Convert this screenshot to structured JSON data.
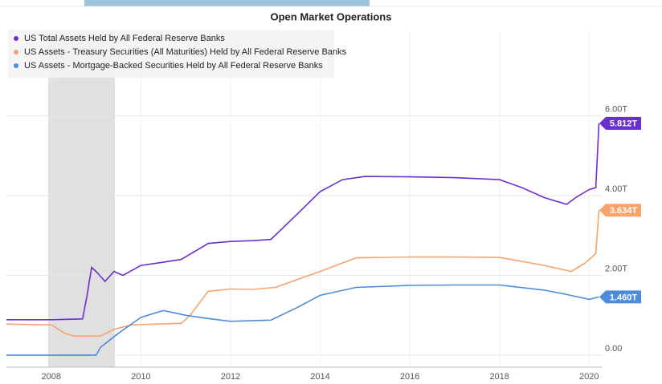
{
  "chart_data": {
    "type": "line",
    "title": "Open Market Operations",
    "xlim": [
      2007,
      2020.3
    ],
    "xticks": [
      2008,
      2010,
      2012,
      2014,
      2016,
      2018,
      2020
    ],
    "ylim": [
      -0.3,
      8.3
    ],
    "yticks": [
      {
        "value": 0,
        "label": "0.00"
      },
      {
        "value": 2,
        "label": "2.00T"
      },
      {
        "value": 4,
        "label": "4.00T"
      },
      {
        "value": 6,
        "label": "6.00T"
      }
    ],
    "grid": true,
    "legend": "top-left",
    "shaded_regions": [
      [
        2007.93,
        2009.42
      ]
    ],
    "series": [
      {
        "name": "US Total Assets Held by All Federal Reserve Banks",
        "color": "#6a2fd0",
        "x": [
          2007,
          2008,
          2008.7,
          2008.8,
          2008.9,
          2009,
          2009.2,
          2009.4,
          2009.6,
          2010,
          2010.5,
          2010.9,
          2011.5,
          2012,
          2012.5,
          2012.9,
          2013.5,
          2014,
          2014.5,
          2015,
          2016,
          2017,
          2018,
          2018.5,
          2019,
          2019.5,
          2019.7,
          2020,
          2020.15,
          2020.22
        ],
        "values": [
          0.89,
          0.89,
          0.91,
          1.5,
          2.2,
          2.1,
          1.85,
          2.1,
          2.0,
          2.25,
          2.33,
          2.4,
          2.8,
          2.85,
          2.87,
          2.9,
          3.55,
          4.1,
          4.4,
          4.48,
          4.47,
          4.45,
          4.4,
          4.2,
          3.95,
          3.78,
          3.95,
          4.15,
          4.2,
          5.812
        ],
        "end_label": "5.812T"
      },
      {
        "name": "US Assets - Treasury Securities (All Maturities) Held by All Federal Reserve Banks",
        "color": "#f8a36b",
        "x": [
          2007,
          2008,
          2008.3,
          2008.5,
          2009.1,
          2009.4,
          2009.8,
          2010.9,
          2011.1,
          2011.5,
          2012,
          2012.5,
          2013,
          2014,
          2014.8,
          2016,
          2017,
          2018,
          2019,
          2019.6,
          2019.9,
          2020.15,
          2020.22
        ],
        "values": [
          0.78,
          0.76,
          0.55,
          0.48,
          0.48,
          0.65,
          0.76,
          0.8,
          1.0,
          1.6,
          1.66,
          1.65,
          1.7,
          2.1,
          2.44,
          2.46,
          2.46,
          2.45,
          2.25,
          2.1,
          2.3,
          2.55,
          3.634
        ],
        "end_label": "3.634T"
      },
      {
        "name": "US Assets - Mortgage-Backed Securities Held by All Federal Reserve Banks",
        "color": "#4f8bdb",
        "x": [
          2007,
          2009,
          2009.1,
          2009.5,
          2010,
          2010.5,
          2011,
          2011.5,
          2012,
          2012.9,
          2013.5,
          2014,
          2014.8,
          2016,
          2017,
          2018,
          2019,
          2019.5,
          2020,
          2020.22
        ],
        "values": [
          0,
          0,
          0.2,
          0.55,
          0.95,
          1.12,
          1.0,
          0.92,
          0.85,
          0.88,
          1.2,
          1.5,
          1.7,
          1.75,
          1.76,
          1.76,
          1.63,
          1.52,
          1.4,
          1.46
        ],
        "end_label": "1.460T"
      }
    ]
  }
}
